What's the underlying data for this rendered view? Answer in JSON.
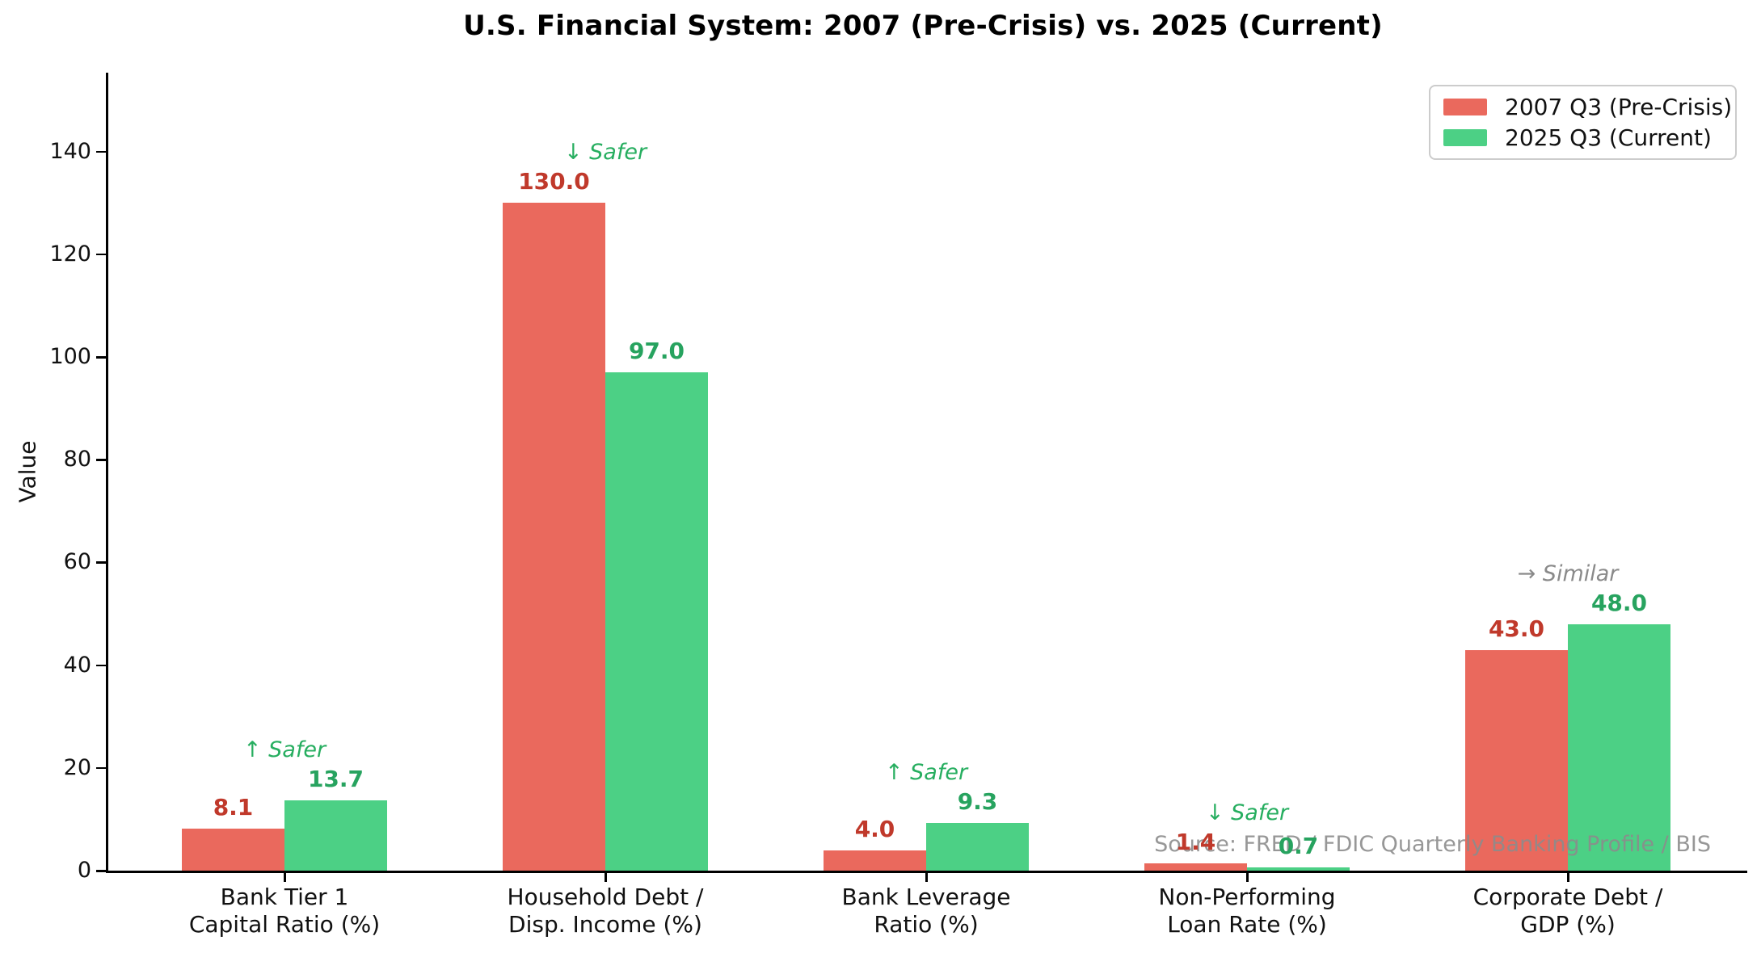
{
  "figure": {
    "background": "#ffffff"
  },
  "chart_data": {
    "type": "bar",
    "title": "U.S. Financial System: 2007 (Pre-Crisis) vs. 2025 (Current)",
    "xlabel": "",
    "ylabel": "Value",
    "ylim": [
      0,
      155
    ],
    "yticks": [
      0,
      20,
      40,
      60,
      80,
      100,
      120,
      140
    ],
    "grid": false,
    "legend_position": "upper right",
    "categories": [
      "Bank Tier 1\nCapital Ratio (%)",
      "Household Debt /\nDisp. Income (%)",
      "Bank Leverage\nRatio (%)",
      "Non-Performing\nLoan Rate (%)",
      "Corporate Debt /\nGDP (%)"
    ],
    "series": [
      {
        "name": "2007 Q3 (Pre-Crisis)",
        "color": "#ea695d",
        "label_color": "#c0392b",
        "values": [
          8.1,
          130.0,
          4.0,
          1.4,
          43.0
        ],
        "value_labels": [
          "8.1",
          "130.0",
          "4.0",
          "1.4",
          "43.0"
        ]
      },
      {
        "name": "2025 Q3 (Current)",
        "color": "#4cd085",
        "label_color": "#27a35f",
        "values": [
          13.7,
          97.0,
          9.3,
          0.7,
          48.0
        ],
        "value_labels": [
          "13.7",
          "97.0",
          "9.3",
          "0.7",
          "48.0"
        ]
      }
    ],
    "annotations": [
      {
        "text": "↑ Safer",
        "color": "#27ae60"
      },
      {
        "text": "↓ Safer",
        "color": "#27ae60"
      },
      {
        "text": "↑ Safer",
        "color": "#27ae60"
      },
      {
        "text": "↓ Safer",
        "color": "#27ae60"
      },
      {
        "text": "→ Similar",
        "color": "#8a8a8a"
      }
    ],
    "source_note": "Source: FRED / FDIC Quarterly Banking Profile / BIS"
  }
}
